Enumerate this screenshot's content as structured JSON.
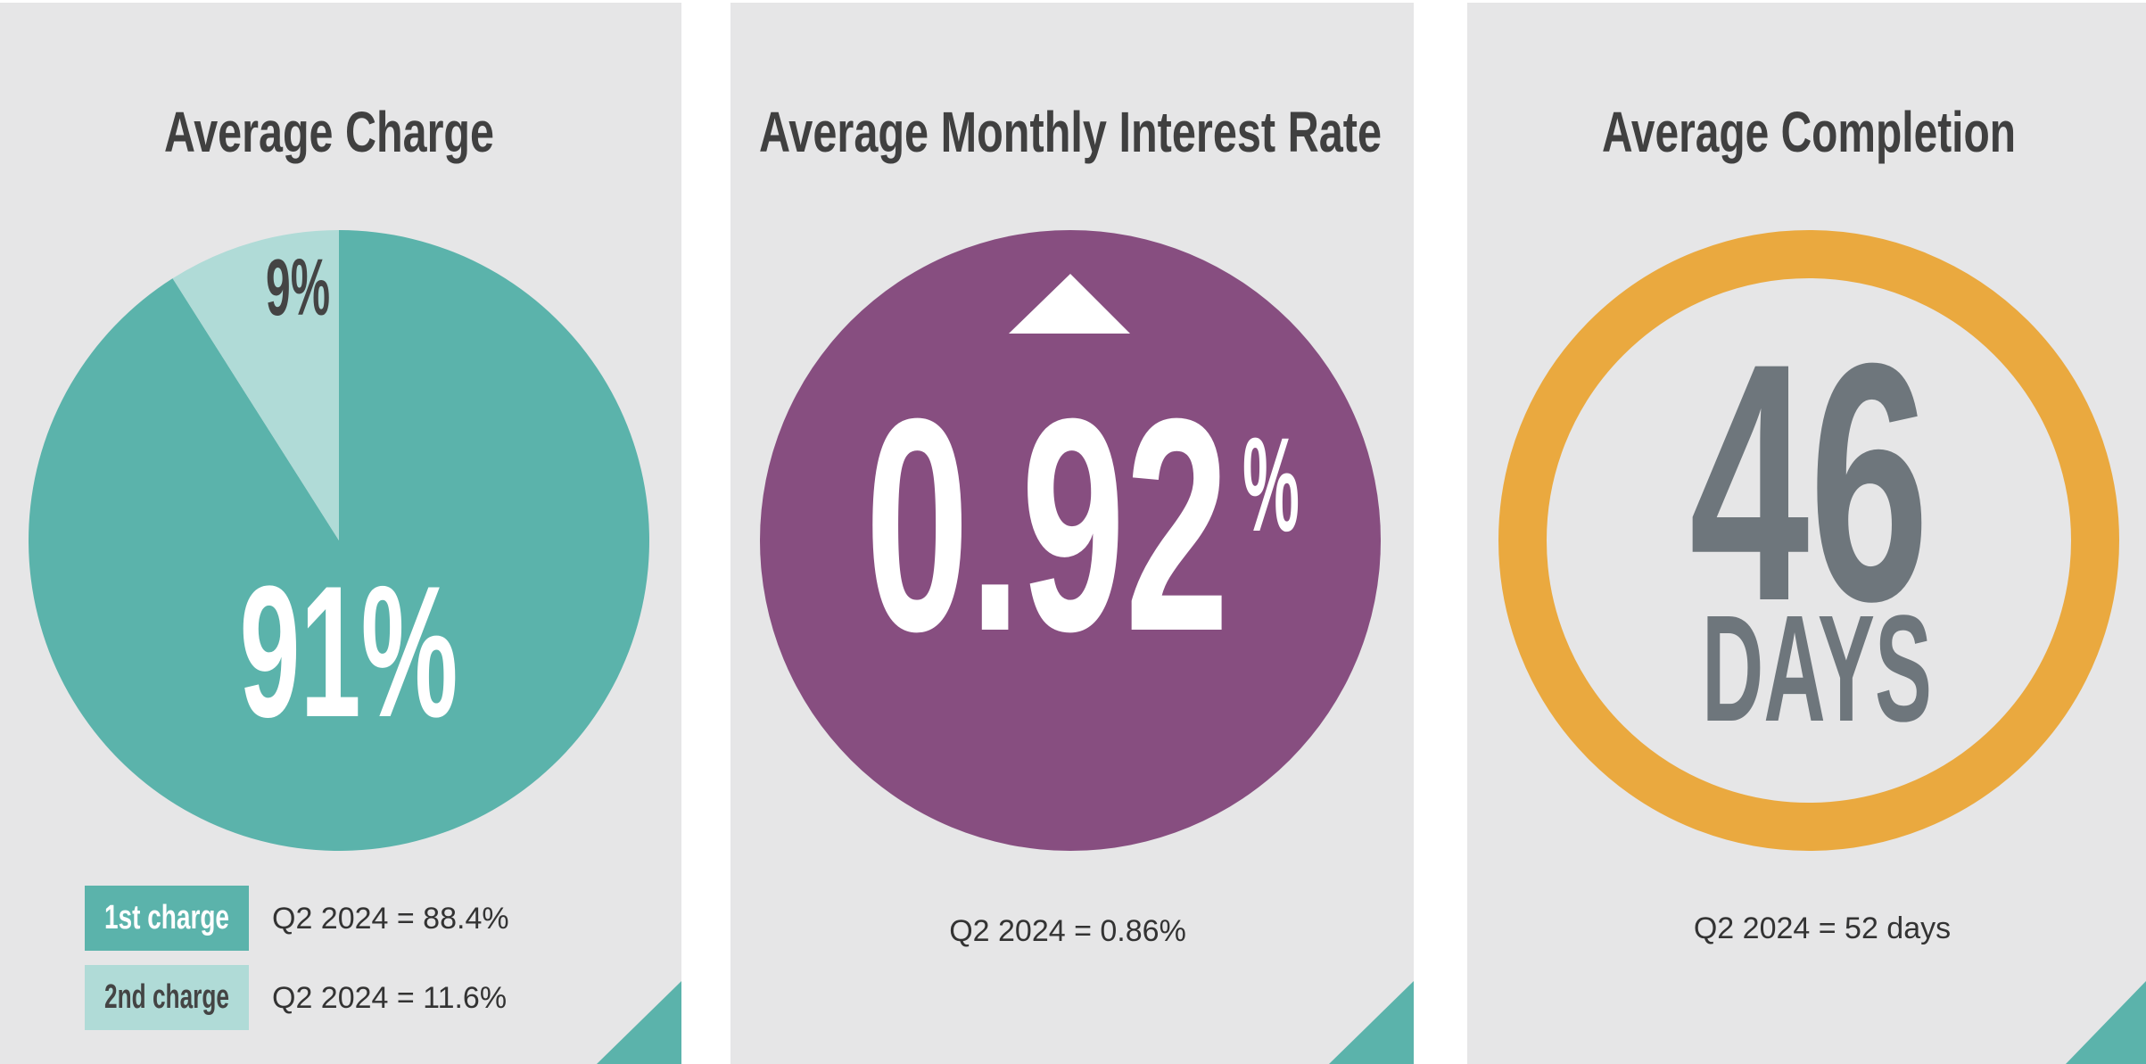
{
  "chart_data": {
    "type": "pie",
    "title": "Average Charge",
    "categories": [
      "1st charge",
      "2nd charge"
    ],
    "values": [
      91,
      9
    ],
    "value_labels": [
      "91%",
      "9%"
    ],
    "colors": [
      "#5bb3ab",
      "#b0dbd7"
    ],
    "notes": [
      "Q2 2024 = 88.4%",
      "Q2 2024 = 11.6%"
    ]
  },
  "cards": [
    {
      "title": "Average Monthly Interest Rate",
      "value": "0.92",
      "unit": "%",
      "note": "Q2 2024 = 0.86%",
      "color": "#874e80"
    },
    {
      "title": "Average Completion",
      "value": "46",
      "unit": "DAYS",
      "note": "Q2 2024 = 52 days",
      "color": "#eaa93f"
    }
  ]
}
